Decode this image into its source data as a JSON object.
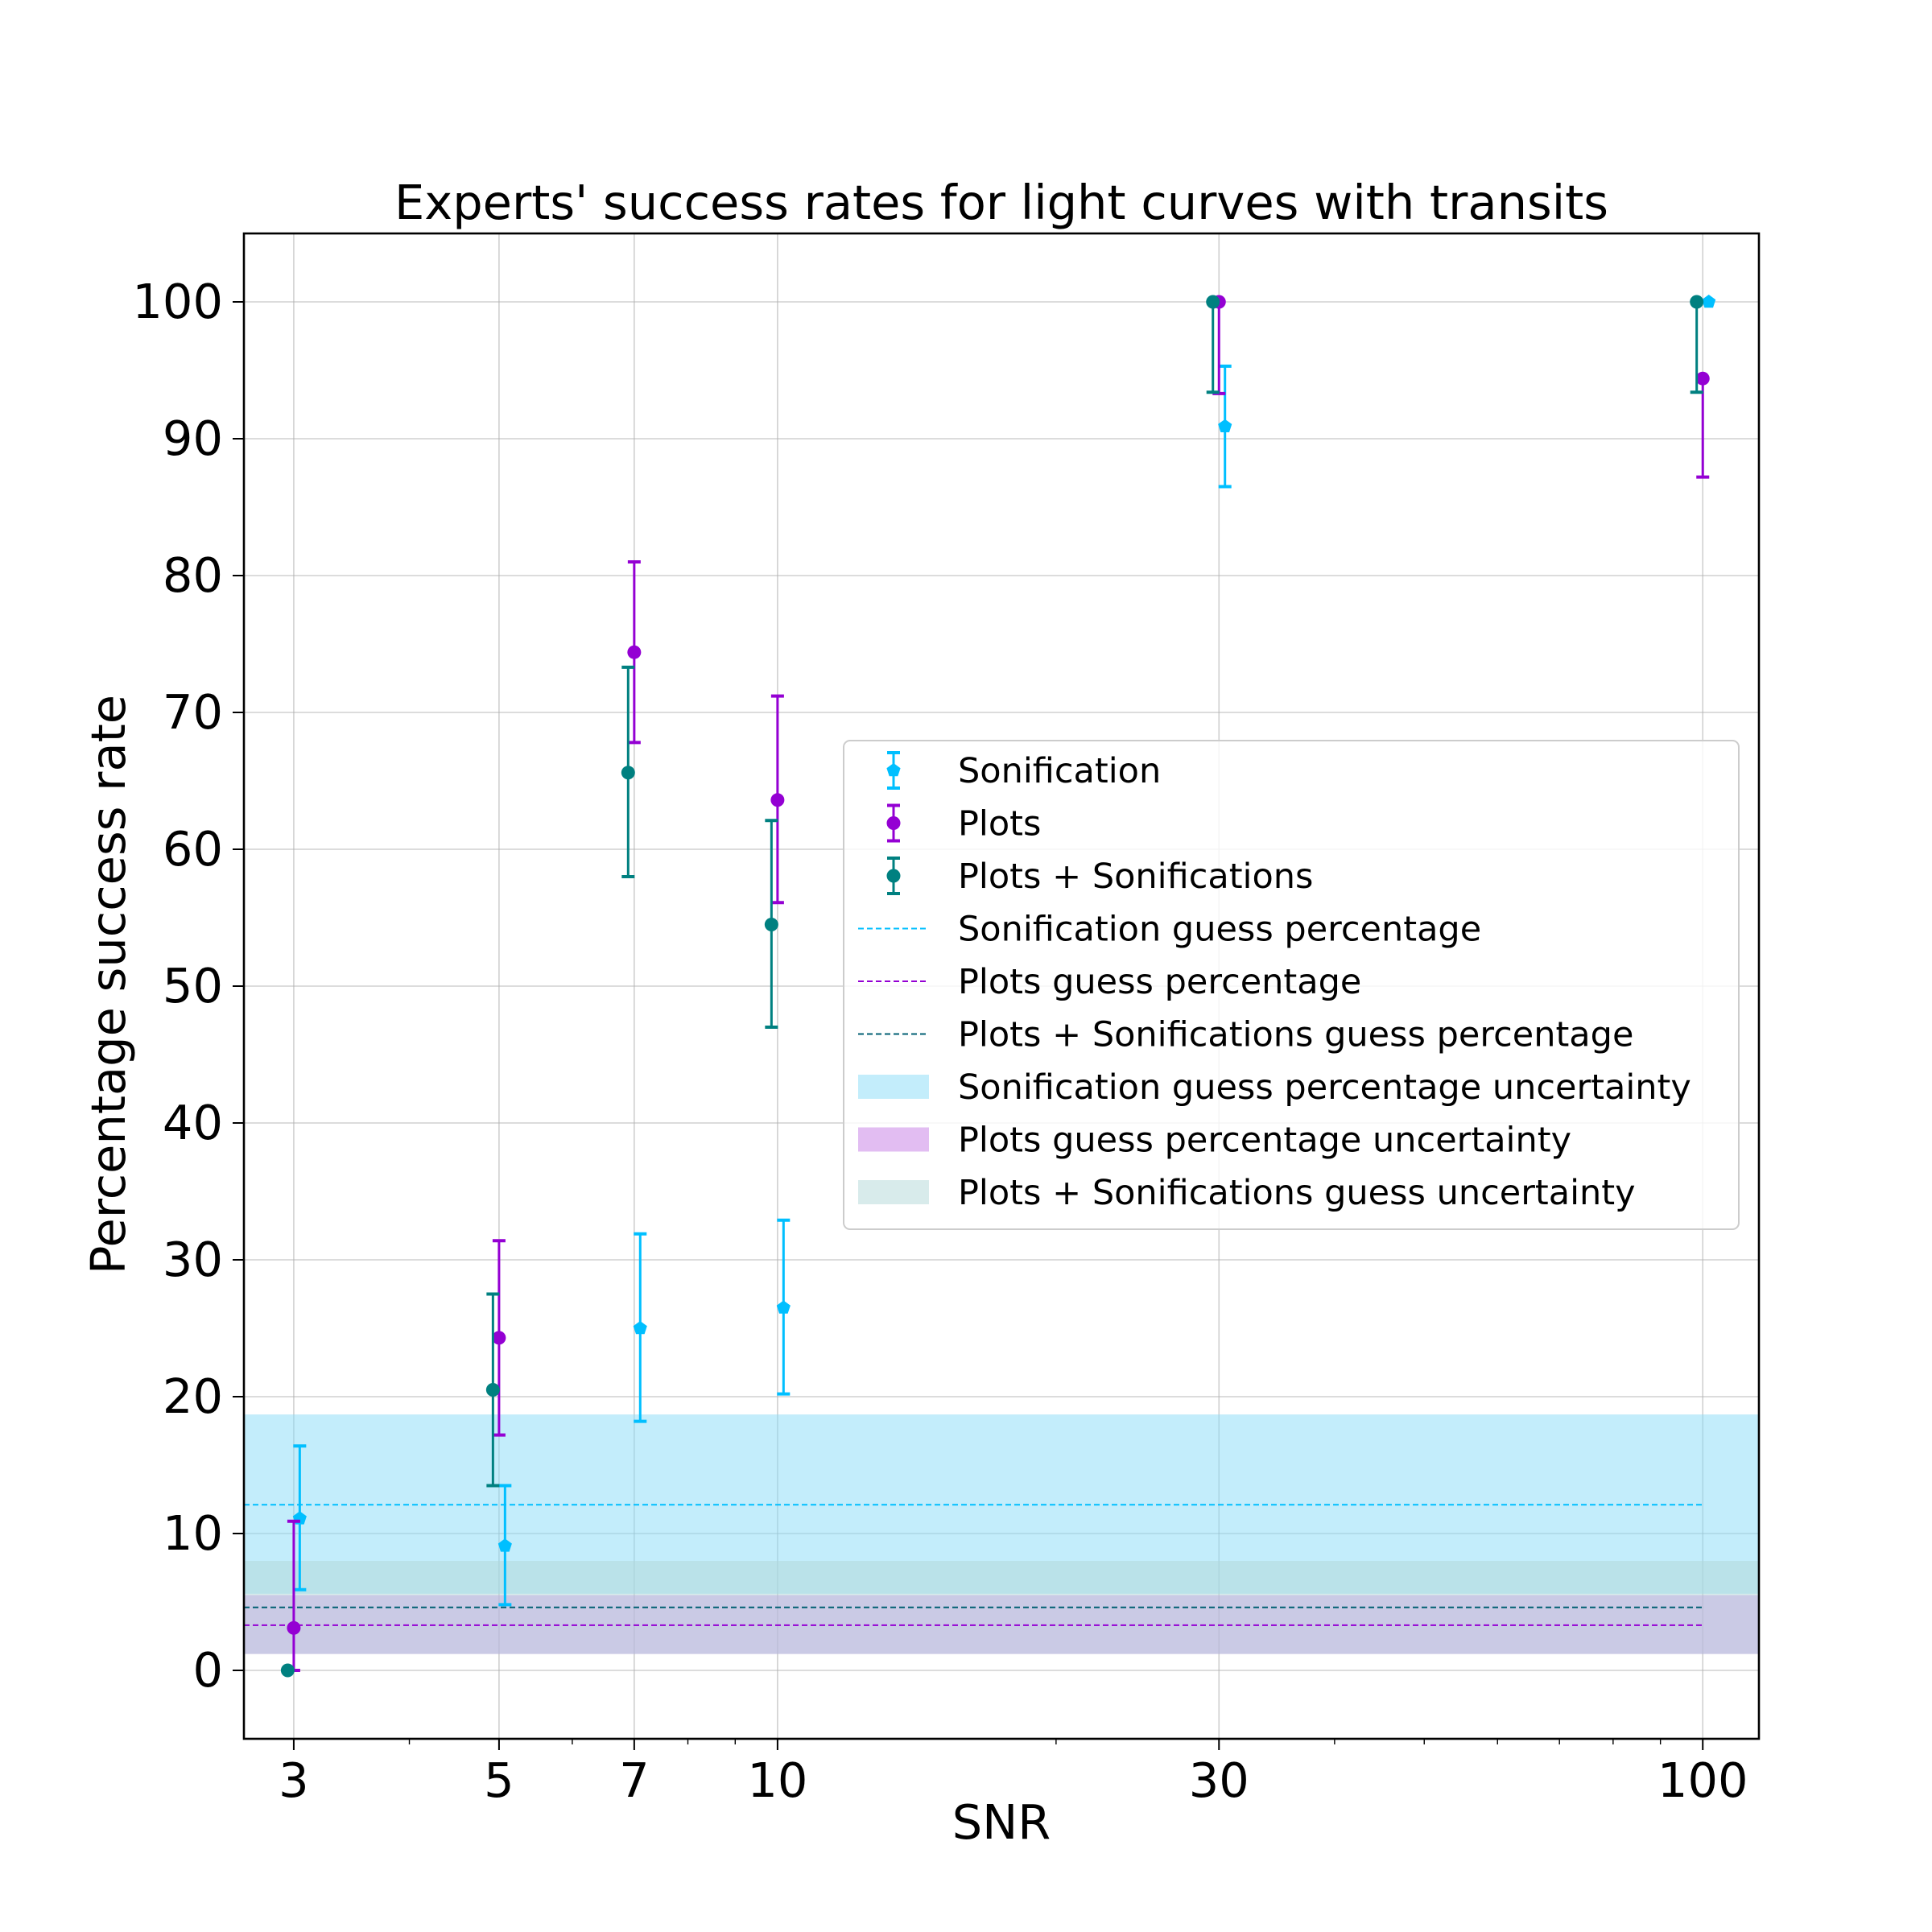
{
  "chart_data": {
    "type": "scatter",
    "title": "Experts' success rates for light curves with transits",
    "xlabel": "SNR",
    "ylabel": "Percentage success rate",
    "x_scale": "log",
    "xlim": [
      2.65,
      115
    ],
    "ylim": [
      -5,
      105
    ],
    "grid": true,
    "x_ticks": [
      3,
      5,
      7,
      10,
      30,
      100
    ],
    "x_tick_labels": [
      "3",
      "5",
      "7",
      "10",
      "30",
      "100"
    ],
    "y_ticks": [
      0,
      10,
      20,
      30,
      40,
      50,
      60,
      70,
      80,
      90,
      100
    ],
    "y_tick_labels": [
      "0",
      "10",
      "20",
      "30",
      "40",
      "50",
      "60",
      "70",
      "80",
      "90",
      "100"
    ],
    "legend_position": "center-right",
    "series": [
      {
        "name": "Sonification",
        "kind": "errorbar",
        "marker": "pentagon",
        "color": "#00bfff",
        "x": [
          3,
          5,
          7,
          10,
          30,
          100
        ],
        "y": [
          11.1,
          9.1,
          25.0,
          26.5,
          90.9,
          100.0
        ],
        "y_err_low": [
          5.2,
          4.3,
          6.8,
          6.3,
          4.4,
          0
        ],
        "y_err_high": [
          5.3,
          4.4,
          6.9,
          6.4,
          4.4,
          0
        ]
      },
      {
        "name": "Plots",
        "kind": "errorbar",
        "marker": "circle",
        "color": "#9400d3",
        "x": [
          3,
          5,
          7,
          10,
          30,
          100
        ],
        "y": [
          3.1,
          24.3,
          74.4,
          63.6,
          100.0,
          94.4
        ],
        "y_err_low": [
          3.1,
          7.1,
          6.6,
          7.5,
          6.7,
          7.2
        ],
        "y_err_high": [
          7.8,
          7.1,
          6.6,
          7.6,
          0,
          0
        ]
      },
      {
        "name": "Plots + Sonifications",
        "kind": "errorbar",
        "marker": "circle",
        "color": "#008080",
        "x": [
          3,
          5,
          7,
          10,
          30,
          100
        ],
        "y": [
          0.0,
          20.5,
          65.6,
          54.5,
          100.0,
          100.0
        ],
        "y_err_low": [
          0,
          7.0,
          7.6,
          7.5,
          6.6,
          6.6
        ],
        "y_err_high": [
          0,
          7.0,
          7.7,
          7.6,
          0,
          0
        ]
      }
    ],
    "reference_lines": [
      {
        "name": "Sonification guess percentage",
        "y": 12.1,
        "color": "#00bfff"
      },
      {
        "name": "Plots guess percentage",
        "y": 3.3,
        "color": "#9400d3"
      },
      {
        "name": "Plots + Sonifications guess percentage",
        "y": 4.6,
        "color": "#005f73"
      }
    ],
    "bands": [
      {
        "name": "Sonification guess percentage uncertainty",
        "y0": 5.6,
        "y1": 18.7,
        "color": "#87dcf7",
        "opacity": 0.5
      },
      {
        "name": "Plots guess percentage uncertainty",
        "y0": 1.2,
        "y1": 5.5,
        "color": "#c57ce6",
        "opacity": 0.5
      },
      {
        "name": "Plots + Sonifications guess uncertainty",
        "y0": 1.2,
        "y1": 8.0,
        "color": "#b2d8d8",
        "opacity": 0.5
      }
    ]
  }
}
